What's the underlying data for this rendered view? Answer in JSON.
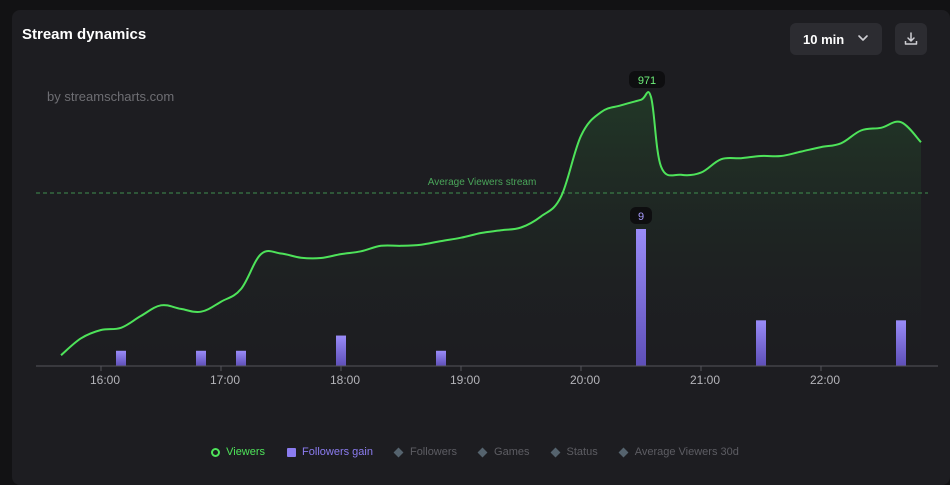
{
  "header": {
    "title": "Stream dynamics",
    "interval_label": "10 min",
    "watermark": "by streamscharts.com"
  },
  "legend": [
    {
      "label": "Viewers",
      "shape": "circle",
      "color": "#4ee35a",
      "active": true
    },
    {
      "label": "Followers gain",
      "shape": "square",
      "color": "#8b7cf0",
      "active": true
    },
    {
      "label": "Followers",
      "shape": "diamond",
      "color": "#55636e",
      "active": false
    },
    {
      "label": "Games",
      "shape": "diamond",
      "color": "#55636e",
      "active": false
    },
    {
      "label": "Status",
      "shape": "diamond",
      "color": "#55636e",
      "active": false
    },
    {
      "label": "Average Viewers 30d",
      "shape": "diamond",
      "color": "#55636e",
      "active": false
    }
  ],
  "chart_data": {
    "type": "line",
    "x_ticks": [
      "16:00",
      "17:00",
      "18:00",
      "19:00",
      "20:00",
      "21:00",
      "22:00"
    ],
    "x_range": [
      "15:38",
      "22:52"
    ],
    "grid": false,
    "legend_placement": "bottom-center",
    "reference_line": {
      "label": "Average Viewers stream",
      "style": "dashed",
      "color": "#3f8f4f"
    },
    "series": [
      {
        "name": "Viewers",
        "type": "area-line",
        "color": "#4ee35a",
        "peak_label": "971",
        "points": [
          [
            "15:40",
            39
          ],
          [
            "15:50",
            100
          ],
          [
            "16:00",
            130
          ],
          [
            "16:10",
            138
          ],
          [
            "16:20",
            181
          ],
          [
            "16:30",
            219
          ],
          [
            "16:40",
            206
          ],
          [
            "16:50",
            196
          ],
          [
            "17:00",
            232
          ],
          [
            "17:10",
            278
          ],
          [
            "17:20",
            404
          ],
          [
            "17:30",
            406
          ],
          [
            "17:40",
            391
          ],
          [
            "17:50",
            390
          ],
          [
            "18:00",
            404
          ],
          [
            "18:10",
            414
          ],
          [
            "18:20",
            434
          ],
          [
            "18:30",
            434
          ],
          [
            "18:40",
            438
          ],
          [
            "18:50",
            451
          ],
          [
            "19:00",
            463
          ],
          [
            "19:10",
            480
          ],
          [
            "19:20",
            490
          ],
          [
            "19:30",
            500
          ],
          [
            "19:40",
            540
          ],
          [
            "19:50",
            611
          ],
          [
            "20:00",
            831
          ],
          [
            "20:10",
            916
          ],
          [
            "20:20",
            941
          ],
          [
            "20:30",
            961
          ],
          [
            "20:35",
            971
          ],
          [
            "20:40",
            720
          ],
          [
            "20:50",
            690
          ],
          [
            "21:00",
            698
          ],
          [
            "21:10",
            746
          ],
          [
            "21:20",
            750
          ],
          [
            "21:30",
            758
          ],
          [
            "21:40",
            758
          ],
          [
            "21:50",
            774
          ],
          [
            "22:00",
            790
          ],
          [
            "22:10",
            804
          ],
          [
            "22:20",
            850
          ],
          [
            "22:30",
            860
          ],
          [
            "22:40",
            880
          ],
          [
            "22:50",
            808
          ]
        ]
      },
      {
        "name": "Followers gain",
        "type": "bar",
        "color": "#8b7cf0",
        "peak_label": "9",
        "points": [
          [
            "16:10",
            1
          ],
          [
            "16:50",
            1
          ],
          [
            "17:10",
            1
          ],
          [
            "18:00",
            2
          ],
          [
            "18:50",
            1
          ],
          [
            "20:30",
            9
          ],
          [
            "21:30",
            3
          ],
          [
            "22:40",
            3
          ]
        ]
      }
    ]
  }
}
